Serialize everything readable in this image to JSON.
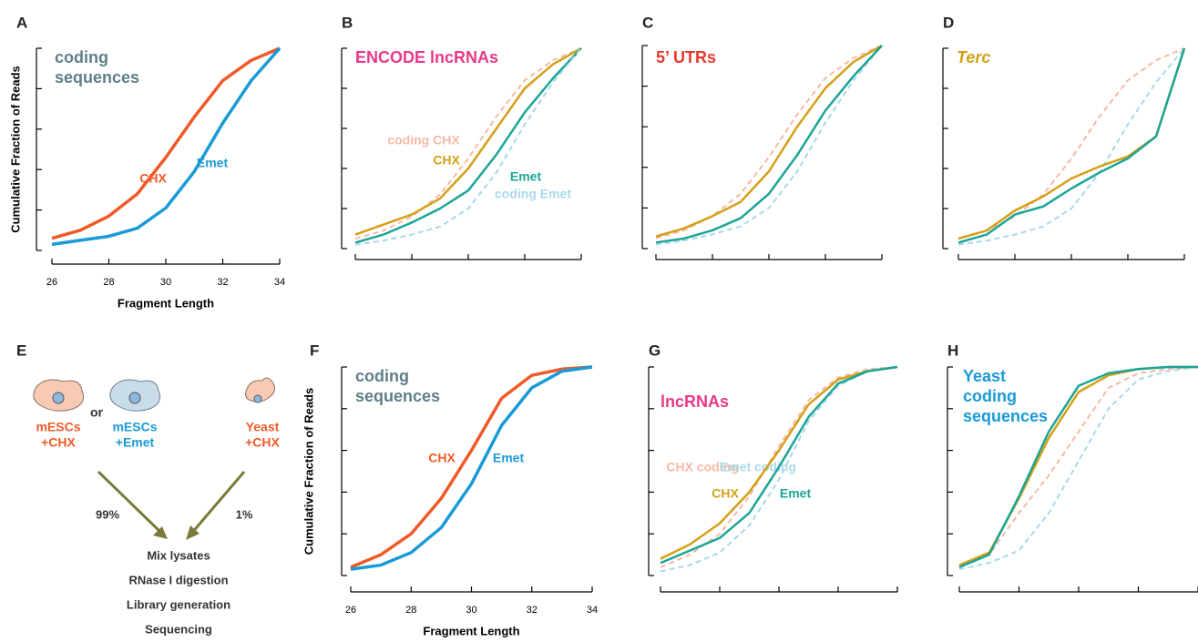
{
  "chart_data": [
    {
      "panel": "A",
      "type": "line",
      "title": "coding sequences",
      "title_color": "#5f7f8a",
      "xlabel": "Fragment Length",
      "ylabel": "Cumulative Fraction of Reads",
      "x": [
        26,
        27,
        28,
        29,
        30,
        31,
        32,
        33,
        34
      ],
      "xlim": [
        26,
        34
      ],
      "ylim": [
        0,
        1
      ],
      "xticks": [
        26,
        28,
        30,
        32,
        34
      ],
      "yticks": [
        0,
        0.2,
        0.4,
        0.6,
        0.8,
        1
      ],
      "xtick_labels": true,
      "series": [
        {
          "name": "CHX",
          "color": "#ef5a28",
          "values": [
            0.06,
            0.1,
            0.17,
            0.28,
            0.46,
            0.66,
            0.84,
            0.94,
            1
          ]
        },
        {
          "name": "Emet",
          "color": "#1a9ad6",
          "values": [
            0.03,
            0.05,
            0.07,
            0.11,
            0.21,
            0.39,
            0.63,
            0.84,
            1
          ]
        }
      ]
    },
    {
      "panel": "B",
      "type": "line",
      "title": "ENCODE lncRNAs",
      "title_color": "#e8398a",
      "x": [
        26,
        27,
        28,
        29,
        30,
        31,
        32,
        33,
        34
      ],
      "xlim": [
        26,
        34
      ],
      "ylim": [
        0,
        1
      ],
      "xticks": [
        26,
        28,
        30,
        32,
        34
      ],
      "yticks": [
        0,
        0.2,
        0.4,
        0.6,
        0.8,
        1
      ],
      "xtick_labels": false,
      "series": [
        {
          "name": "coding CHX",
          "color": "#f7b9a5",
          "dashed": true,
          "values": [
            0.05,
            0.09,
            0.16,
            0.27,
            0.45,
            0.66,
            0.84,
            0.94,
            1
          ]
        },
        {
          "name": "CHX",
          "color": "#d4a017",
          "values": [
            0.07,
            0.12,
            0.17,
            0.25,
            0.4,
            0.6,
            0.8,
            0.92,
            1
          ]
        },
        {
          "name": "Emet",
          "color": "#1aa596",
          "values": [
            0.03,
            0.07,
            0.13,
            0.2,
            0.29,
            0.47,
            0.68,
            0.85,
            1
          ]
        },
        {
          "name": "coding Emet",
          "color": "#a9d8ea",
          "dashed": true,
          "values": [
            0.02,
            0.04,
            0.07,
            0.11,
            0.2,
            0.38,
            0.62,
            0.83,
            1
          ]
        }
      ]
    },
    {
      "panel": "C",
      "type": "line",
      "title": "5’ UTRs",
      "title_color": "#e8392b",
      "x": [
        26,
        27,
        28,
        29,
        30,
        31,
        32,
        33,
        34
      ],
      "xlim": [
        26,
        34
      ],
      "ylim": [
        0,
        1
      ],
      "xticks": [
        26,
        28,
        30,
        32,
        34
      ],
      "yticks": [
        0,
        0.2,
        0.4,
        0.6,
        0.8,
        1
      ],
      "xtick_labels": false,
      "series": [
        {
          "color": "#f7b9a5",
          "dashed": true,
          "values": [
            0.05,
            0.09,
            0.16,
            0.27,
            0.45,
            0.66,
            0.84,
            0.94,
            1
          ]
        },
        {
          "color": "#a9d8ea",
          "dashed": true,
          "values": [
            0.02,
            0.04,
            0.07,
            0.11,
            0.2,
            0.38,
            0.62,
            0.83,
            1
          ]
        },
        {
          "color": "#d4a017",
          "values": [
            0.06,
            0.1,
            0.16,
            0.23,
            0.38,
            0.6,
            0.79,
            0.92,
            1
          ]
        },
        {
          "color": "#1aa596",
          "values": [
            0.03,
            0.05,
            0.09,
            0.15,
            0.27,
            0.46,
            0.68,
            0.85,
            1
          ]
        }
      ]
    },
    {
      "panel": "D",
      "type": "line",
      "title": "Terc",
      "title_color": "#d4a017",
      "title_italic": true,
      "x": [
        26,
        27,
        28,
        29,
        30,
        31,
        32,
        33,
        34
      ],
      "xlim": [
        26,
        34
      ],
      "ylim": [
        0,
        1
      ],
      "xticks": [
        26,
        28,
        30,
        32,
        34
      ],
      "yticks": [
        0,
        0.2,
        0.4,
        0.6,
        0.8,
        1
      ],
      "xtick_labels": false,
      "series": [
        {
          "color": "#f7b9a5",
          "dashed": true,
          "values": [
            0.05,
            0.09,
            0.16,
            0.27,
            0.45,
            0.66,
            0.84,
            0.94,
            1
          ]
        },
        {
          "color": "#a9d8ea",
          "dashed": true,
          "values": [
            0.02,
            0.04,
            0.07,
            0.11,
            0.2,
            0.38,
            0.62,
            0.83,
            1
          ]
        },
        {
          "color": "#d4a017",
          "values": [
            0.05,
            0.09,
            0.19,
            0.26,
            0.35,
            0.41,
            0.46,
            0.56,
            1
          ]
        },
        {
          "color": "#1aa596",
          "values": [
            0.03,
            0.07,
            0.17,
            0.21,
            0.3,
            0.38,
            0.45,
            0.56,
            1
          ]
        }
      ]
    },
    {
      "panel": "F",
      "type": "line",
      "title": "coding sequences",
      "title_color": "#5f7f8a",
      "xlabel": "Fragment Length",
      "ylabel": "Cumulative Fraction of Reads",
      "x": [
        26,
        27,
        28,
        29,
        30,
        31,
        32,
        33,
        34
      ],
      "xlim": [
        26,
        34
      ],
      "ylim": [
        0,
        1
      ],
      "xticks": [
        26,
        28,
        30,
        32,
        34
      ],
      "yticks": [
        0,
        0.2,
        0.4,
        0.6,
        0.8,
        1
      ],
      "xtick_labels": true,
      "series": [
        {
          "name": "CHX",
          "color": "#ef5a28",
          "values": [
            0.04,
            0.1,
            0.2,
            0.37,
            0.6,
            0.85,
            0.96,
            0.99,
            1
          ]
        },
        {
          "name": "Emet",
          "color": "#1a9ad6",
          "values": [
            0.03,
            0.05,
            0.11,
            0.23,
            0.44,
            0.72,
            0.9,
            0.98,
            1
          ]
        }
      ]
    },
    {
      "panel": "G",
      "type": "line",
      "title": "lncRNAs",
      "title_color": "#e8398a",
      "x": [
        26,
        27,
        28,
        29,
        30,
        31,
        32,
        33,
        34
      ],
      "xlim": [
        26,
        34
      ],
      "ylim": [
        0,
        1
      ],
      "xticks": [
        26,
        28,
        30,
        32,
        34
      ],
      "yticks": [
        0,
        0.2,
        0.4,
        0.6,
        0.8,
        1
      ],
      "xtick_labels": false,
      "series": [
        {
          "name": "CHX coding",
          "color": "#f7b9a5",
          "dashed": true,
          "values": [
            0.04,
            0.1,
            0.2,
            0.38,
            0.62,
            0.84,
            0.95,
            0.99,
            1
          ]
        },
        {
          "name": "Emet coding",
          "color": "#a9d8ea",
          "dashed": true,
          "values": [
            0.02,
            0.05,
            0.11,
            0.24,
            0.46,
            0.74,
            0.91,
            0.98,
            1
          ]
        },
        {
          "name": "CHX",
          "color": "#d4a017",
          "values": [
            0.08,
            0.15,
            0.25,
            0.4,
            0.6,
            0.82,
            0.94,
            0.98,
            1
          ]
        },
        {
          "name": "Emet",
          "color": "#1aa596",
          "values": [
            0.06,
            0.12,
            0.18,
            0.3,
            0.52,
            0.76,
            0.92,
            0.98,
            1
          ]
        }
      ]
    },
    {
      "panel": "H",
      "type": "line",
      "title": "Yeast coding sequences",
      "title_color": "#1a9ad6",
      "x": [
        26,
        27,
        28,
        29,
        30,
        31,
        32,
        33,
        34
      ],
      "xlim": [
        26,
        34
      ],
      "ylim": [
        0,
        1
      ],
      "xticks": [
        26,
        28,
        30,
        32,
        34
      ],
      "yticks": [
        0,
        0.2,
        0.4,
        0.6,
        0.8,
        1
      ],
      "xtick_labels": false,
      "series": [
        {
          "color": "#f7b9a5",
          "dashed": true,
          "values": [
            0.04,
            0.1,
            0.3,
            0.48,
            0.69,
            0.9,
            0.97,
            0.99,
            1
          ]
        },
        {
          "color": "#a9d8ea",
          "dashed": true,
          "values": [
            0.03,
            0.06,
            0.12,
            0.3,
            0.55,
            0.8,
            0.94,
            0.98,
            1
          ]
        },
        {
          "color": "#d4a017",
          "values": [
            0.05,
            0.11,
            0.37,
            0.66,
            0.88,
            0.96,
            0.99,
            1,
            1
          ]
        },
        {
          "color": "#1aa596",
          "values": [
            0.04,
            0.1,
            0.38,
            0.69,
            0.91,
            0.97,
            0.99,
            1,
            1
          ]
        }
      ]
    }
  ],
  "diagram": {
    "panel": "E",
    "sources": [
      {
        "lines": [
          "mESCs",
          "+CHX"
        ],
        "color": "#ef5a28"
      },
      {
        "lines": [
          "mESCs",
          "+Emet"
        ],
        "color": "#1a9ad6"
      },
      {
        "lines": [
          "Yeast",
          "+CHX"
        ],
        "color": "#ef5a28"
      }
    ],
    "or": "or",
    "left_share": "99%",
    "right_share": "1%",
    "steps": [
      "Mix lysates",
      "RNase I digestion",
      "Library generation",
      "Sequencing"
    ]
  }
}
